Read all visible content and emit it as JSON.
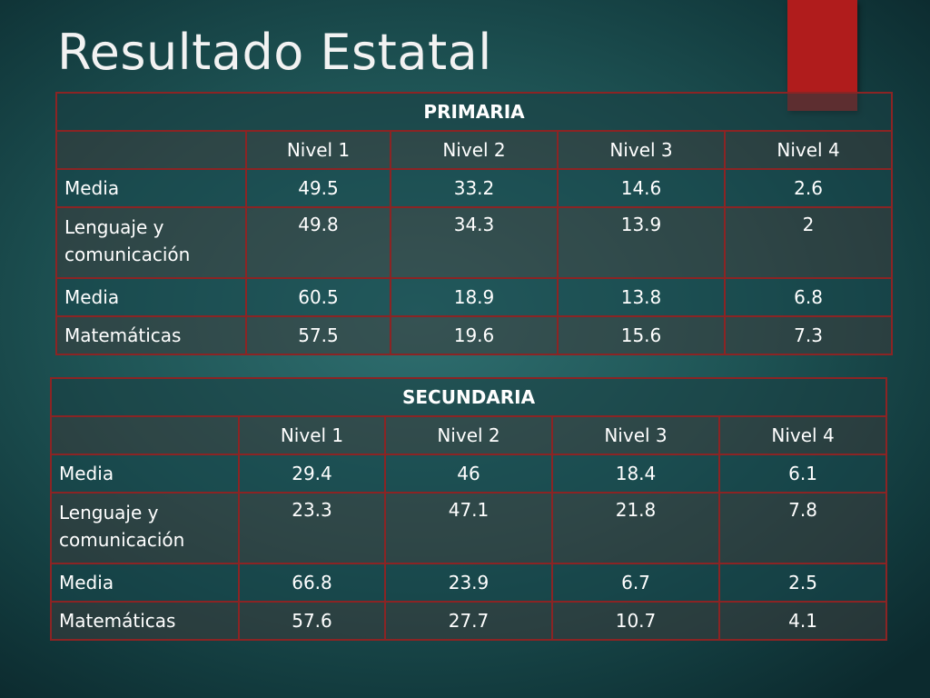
{
  "slide": {
    "title": "Resultado Estatal"
  },
  "colors": {
    "accent": "#b01c1c",
    "border": "#8b2424",
    "background": "#1f5556"
  },
  "primaria": {
    "title": "PRIMARIA",
    "levels": [
      "Nivel 1",
      "Nivel  2",
      "Nivel  3",
      "Nivel  4"
    ],
    "rows": [
      {
        "label": "Media",
        "values": [
          "49.5",
          "33.2",
          "14.6",
          "2.6"
        ]
      },
      {
        "label": "Lenguaje y comunicación",
        "values": [
          "49.8",
          "34.3",
          "13.9",
          "2"
        ]
      },
      {
        "label": "Media",
        "values": [
          "60.5",
          "18.9",
          "13.8",
          "6.8"
        ]
      },
      {
        "label": "Matemáticas",
        "values": [
          "57.5",
          "19.6",
          "15.6",
          "7.3"
        ]
      }
    ]
  },
  "secundaria": {
    "title": "SECUNDARIA",
    "levels": [
      "Nivel 1",
      "Nivel  2",
      "Nivel  3",
      "Nivel  4"
    ],
    "rows": [
      {
        "label": "Media",
        "values": [
          "29.4",
          "46",
          "18.4",
          "6.1"
        ]
      },
      {
        "label": "Lenguaje y comunicación",
        "values": [
          "23.3",
          "47.1",
          "21.8",
          "7.8"
        ]
      },
      {
        "label": "Media",
        "values": [
          "66.8",
          "23.9",
          "6.7",
          "2.5"
        ]
      },
      {
        "label": "Matemáticas",
        "values": [
          "57.6",
          "27.7",
          "10.7",
          "4.1"
        ]
      }
    ]
  }
}
